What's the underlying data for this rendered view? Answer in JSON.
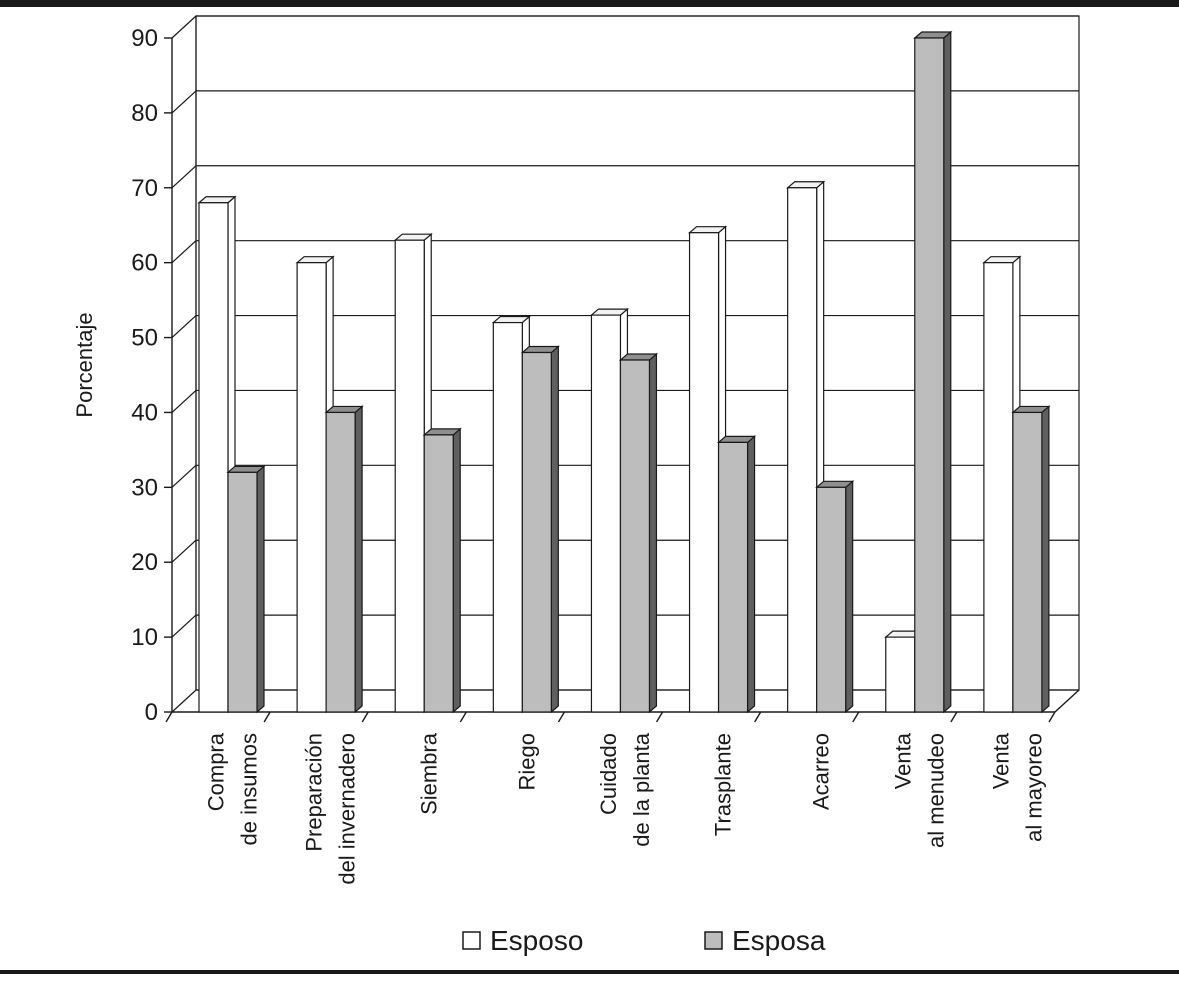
{
  "chart_data": {
    "type": "bar",
    "ylabel": "Porcentaje",
    "ylim": [
      0,
      90
    ],
    "yticks": [
      0,
      10,
      20,
      30,
      40,
      50,
      60,
      70,
      80,
      90
    ],
    "grid": true,
    "legend_position": "bottom-center",
    "categories": [
      [
        "Compra",
        "de insumos"
      ],
      [
        "Preparación",
        "del invernadero"
      ],
      [
        "Siembra"
      ],
      [
        "Riego"
      ],
      [
        "Cuidado",
        "de la planta"
      ],
      [
        "Trasplante"
      ],
      [
        "Acarreo"
      ],
      [
        "Venta",
        "al menudeo"
      ],
      [
        "Venta",
        "al mayoreo"
      ]
    ],
    "series": [
      {
        "name": "Esposo",
        "values": [
          68,
          60,
          63,
          52,
          53,
          64,
          70,
          10,
          60
        ],
        "color": "#ffffff"
      },
      {
        "name": "Esposa",
        "values": [
          32,
          40,
          37,
          48,
          47,
          36,
          30,
          90,
          40
        ],
        "color": "#bdbdbd"
      }
    ]
  }
}
